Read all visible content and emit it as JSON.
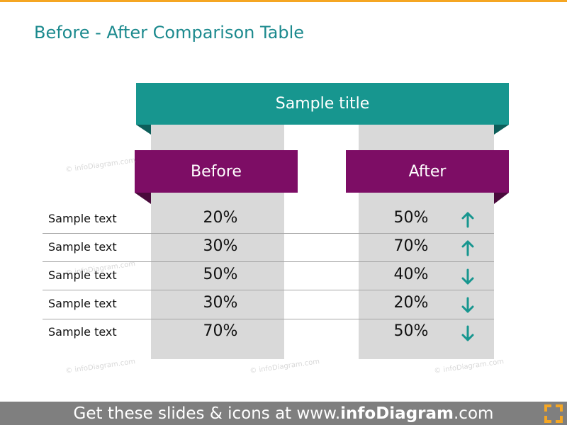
{
  "header": {
    "title": "Before - After Comparison Table"
  },
  "table": {
    "title": "Sample title",
    "columns": [
      "Before",
      "After"
    ],
    "rows": [
      [
        "Sample text",
        "20%",
        "50%"
      ],
      [
        "Sample text",
        "30%",
        "70%"
      ],
      [
        "Sample text",
        "50%",
        "40%"
      ],
      [
        "Sample text",
        "30%",
        "20%"
      ],
      [
        "Sample text",
        "70%",
        "50%"
      ]
    ]
  },
  "watermark": "© infoDiagram.com",
  "footer": {
    "parts": [
      "Get these slides & icons at www.",
      "infoDiagram",
      ".com"
    ]
  }
}
